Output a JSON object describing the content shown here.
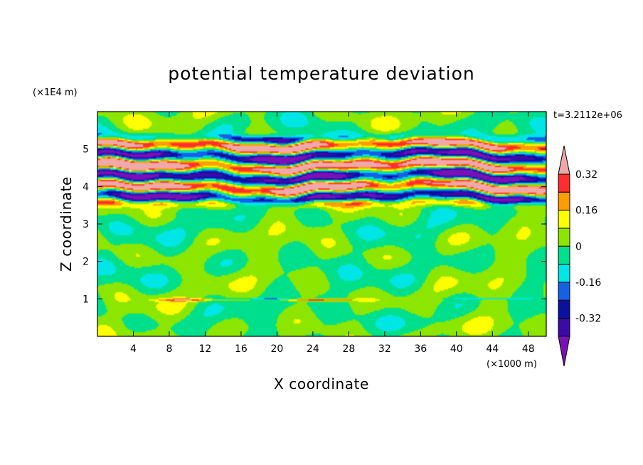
{
  "chart_data": {
    "type": "heatmap",
    "title": "potential temperature deviation",
    "xlabel": "X coordinate",
    "ylabel": "Z coordinate",
    "x_unit": "(×1000 m)",
    "y_unit": "(×1E4 m)",
    "time_label": "t=3.2112e+06",
    "xlim": [
      0,
      50
    ],
    "ylim": [
      0,
      6
    ],
    "x_ticks": [
      4,
      8,
      12,
      16,
      20,
      24,
      28,
      32,
      36,
      40,
      44,
      48
    ],
    "y_ticks": [
      1,
      2,
      3,
      4,
      5
    ],
    "x_tick_labels": [
      "4",
      "8",
      "12",
      "16",
      "20",
      "24",
      "28",
      "32",
      "36",
      "40",
      "44",
      "48"
    ],
    "y_tick_labels": [
      "1",
      "2",
      "3",
      "4",
      "5"
    ],
    "levels": [
      -0.4,
      -0.32,
      -0.24,
      -0.16,
      -0.08,
      0,
      0.08,
      0.16,
      0.24,
      0.32,
      0.4
    ],
    "colorbar_labels": [
      "0.32",
      "0.16",
      "0",
      "-0.16",
      "-0.32"
    ],
    "colorbar_label_values": [
      0.32,
      0.16,
      0,
      -0.16,
      -0.32
    ],
    "colors": [
      "#7a10b8",
      "#3c0aa8",
      "#0a10a0",
      "#1460e6",
      "#00e6e6",
      "#00e08c",
      "#8ce600",
      "#ffff00",
      "#ff9c00",
      "#ff2e2e",
      "#f0a8a8"
    ],
    "colorbar_extend": "both",
    "description_of_field": "smooth near-zero field below z=3.4; strong banded positive/negative layers between z≈3.5 and z≈5.3"
  }
}
